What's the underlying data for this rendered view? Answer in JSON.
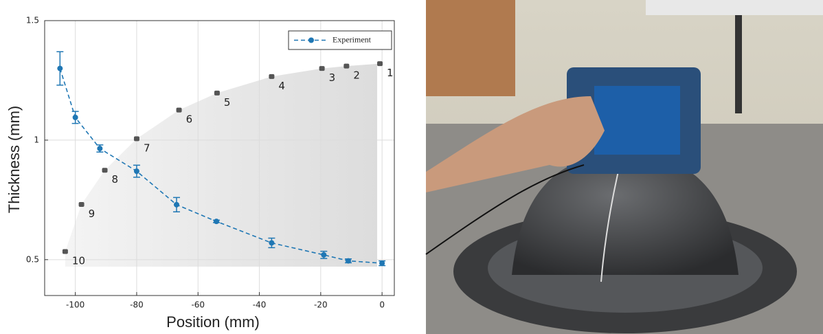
{
  "chart_data": {
    "type": "line",
    "xlabel": "Position (mm)",
    "ylabel": "Thickness (mm)",
    "xlim": [
      -110,
      4
    ],
    "ylim": [
      0.35,
      1.5
    ],
    "xticks": [
      -100,
      -80,
      -60,
      -40,
      -20,
      0
    ],
    "yticks": [
      0.5,
      1,
      1.5
    ],
    "grid": true,
    "legend": "upper right",
    "x": [
      -105,
      -100,
      -92,
      -80,
      -67,
      -54,
      -36,
      -19,
      -11,
      0
    ],
    "series": [
      {
        "name": "Experiment",
        "color": "#1f77b4",
        "values": [
          1.3,
          1.095,
          0.965,
          0.87,
          0.73,
          0.66,
          0.57,
          0.52,
          0.495,
          0.485
        ],
        "errors": [
          0.07,
          0.025,
          0.015,
          0.025,
          0.03,
          0.005,
          0.02,
          0.015,
          0.008,
          0.01
        ]
      }
    ],
    "markers": {
      "color": "#555555",
      "x": [
        -0.7,
        -11.6,
        -19.6,
        -36,
        -53.8,
        -66.2,
        -80,
        -90.4,
        -98,
        -103.3
      ],
      "y": [
        1.32,
        1.31,
        1.3,
        1.266,
        1.197,
        1.126,
        1.006,
        0.874,
        0.731,
        0.534
      ],
      "labels": [
        "1",
        "2",
        "3",
        "4",
        "5",
        "6",
        "7",
        "8",
        "9",
        "10"
      ]
    }
  }
}
